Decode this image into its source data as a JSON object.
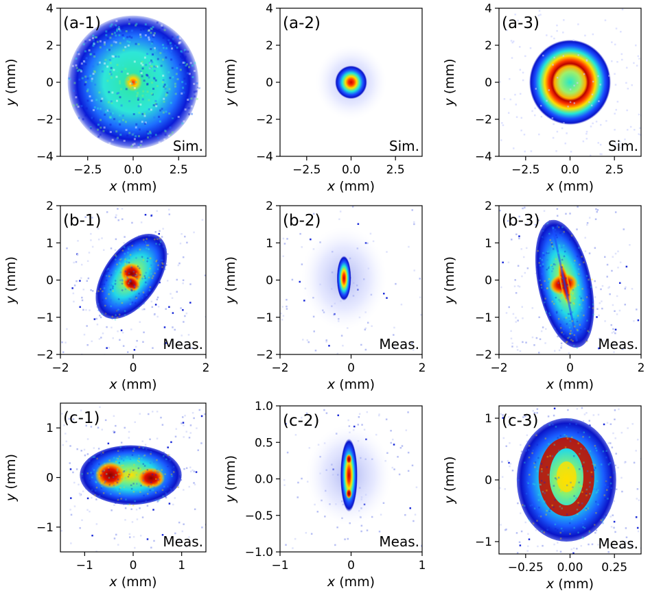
{
  "chart_data": [
    {
      "type": "heatmap",
      "id": "a1",
      "label": "(a-1)",
      "corner": "Sim.",
      "xlabel_var": "x",
      "ylabel_var": "y",
      "unit": "(mm)",
      "xlim": [
        -4,
        4
      ],
      "ylim": [
        -4,
        4
      ],
      "xticks": [
        "−2.5",
        "0.0",
        "2.5"
      ],
      "xtick_values": [
        -2.5,
        0,
        2.5
      ],
      "yticks": [
        "4",
        "2",
        "0",
        "−2",
        "−4"
      ],
      "ytick_values": [
        4,
        2,
        0,
        -2,
        -4
      ],
      "beam": {
        "shape": "disk",
        "cx": 0,
        "cy": 0,
        "rx": 3.6,
        "ry": 3.6,
        "rot": 0,
        "peak": "center"
      }
    },
    {
      "type": "heatmap",
      "id": "a2",
      "label": "(a-2)",
      "corner": "Sim.",
      "xlabel_var": "x",
      "ylabel_var": "y",
      "unit": "(mm)",
      "xlim": [
        -4,
        4
      ],
      "ylim": [
        -4,
        4
      ],
      "xticks": [
        "−2.5",
        "0.0",
        "2.5"
      ],
      "xtick_values": [
        -2.5,
        0,
        2.5
      ],
      "yticks": [
        "4",
        "2",
        "0",
        "−2",
        "−4"
      ],
      "ytick_values": [
        4,
        2,
        0,
        -2,
        -4
      ],
      "beam": {
        "shape": "spot",
        "cx": 0,
        "cy": 0,
        "rx": 0.9,
        "ry": 0.9,
        "halo": 2.0,
        "rot": 0,
        "peak": "center"
      }
    },
    {
      "type": "heatmap",
      "id": "a3",
      "label": "(a-3)",
      "corner": "Sim.",
      "xlabel_var": "x",
      "ylabel_var": "y",
      "unit": "(mm)",
      "xlim": [
        -4,
        4
      ],
      "ylim": [
        -4,
        4
      ],
      "xticks": [
        "−2.5",
        "0.0",
        "2.5"
      ],
      "xtick_values": [
        -2.5,
        0,
        2.5
      ],
      "yticks": [
        "4",
        "2",
        "0",
        "−2",
        "−4"
      ],
      "ytick_values": [
        4,
        2,
        0,
        -2,
        -4
      ],
      "beam": {
        "shape": "ring",
        "cx": 0,
        "cy": 0,
        "rx": 2.3,
        "ry": 2.3,
        "ring_r": 1.0,
        "rot": 0,
        "peak": "ring"
      }
    },
    {
      "type": "heatmap",
      "id": "b1",
      "label": "(b-1)",
      "corner": "Meas.",
      "xlabel_var": "x",
      "ylabel_var": "y",
      "unit": "(mm)",
      "xlim": [
        -2,
        2
      ],
      "ylim": [
        -2,
        2
      ],
      "xticks": [
        "−2",
        "0",
        "2"
      ],
      "xtick_values": [
        -2,
        0,
        2
      ],
      "yticks": [
        "2",
        "1",
        "0",
        "−1",
        "−2"
      ],
      "ytick_values": [
        2,
        1,
        0,
        -1,
        -2
      ],
      "beam": {
        "shape": "ellipse",
        "cx": -0.05,
        "cy": 0.1,
        "rx": 0.75,
        "ry": 1.3,
        "rot": -35,
        "peak": "lobes"
      }
    },
    {
      "type": "heatmap",
      "id": "b2",
      "label": "(b-2)",
      "corner": "Meas.",
      "xlabel_var": "x",
      "ylabel_var": "y",
      "unit": "(mm)",
      "xlim": [
        -2,
        2
      ],
      "ylim": [
        -2,
        2
      ],
      "xticks": [
        "−2",
        "0",
        "2"
      ],
      "xtick_values": [
        -2,
        0,
        2
      ],
      "yticks": [
        "2",
        "1",
        "0",
        "−1",
        "−2"
      ],
      "ytick_values": [
        2,
        1,
        0,
        -1,
        -2
      ],
      "beam": {
        "shape": "spot",
        "cx": -0.2,
        "cy": 0.05,
        "rx": 0.2,
        "ry": 0.6,
        "halo": 1.2,
        "rot": 0,
        "peak": "center"
      }
    },
    {
      "type": "heatmap",
      "id": "b3",
      "label": "(b-3)",
      "corner": "Meas.",
      "xlabel_var": "x",
      "ylabel_var": "y",
      "unit": "(mm)",
      "xlim": [
        -2,
        2
      ],
      "ylim": [
        -2,
        2
      ],
      "xticks": [
        "−2",
        "0",
        "2"
      ],
      "xtick_values": [
        -2,
        0,
        2
      ],
      "yticks": [
        "2",
        "1",
        "0",
        "−1",
        "−2"
      ],
      "ytick_values": [
        2,
        1,
        0,
        -1,
        -2
      ],
      "beam": {
        "shape": "ellipse",
        "cx": -0.15,
        "cy": -0.1,
        "rx": 0.75,
        "ry": 1.75,
        "rot": 12,
        "peak": "cross"
      }
    },
    {
      "type": "heatmap",
      "id": "c1",
      "label": "(c-1)",
      "corner": "Meas.",
      "xlabel_var": "x",
      "ylabel_var": "y",
      "unit": "(mm)",
      "xlim": [
        -1.5,
        1.5
      ],
      "ylim": [
        -1.5,
        1.5
      ],
      "xticks": [
        "−1",
        "0",
        "1"
      ],
      "xtick_values": [
        -1,
        0,
        1
      ],
      "yticks": [
        "1",
        "0",
        "−1"
      ],
      "ytick_values": [
        1,
        0,
        -1
      ],
      "beam": {
        "shape": "ellipse",
        "cx": -0.05,
        "cy": 0.05,
        "rx": 1.05,
        "ry": 0.6,
        "rot": 0,
        "peak": "twin"
      }
    },
    {
      "type": "heatmap",
      "id": "c2",
      "label": "(c-2)",
      "corner": "Meas.",
      "xlabel_var": "x",
      "ylabel_var": "y",
      "unit": "(mm)",
      "xlim": [
        -1,
        1
      ],
      "ylim": [
        -1,
        1
      ],
      "xticks": [
        "−1",
        "0",
        "1"
      ],
      "xtick_values": [
        -1,
        0,
        1
      ],
      "yticks": [
        "1.0",
        "0.5",
        "0.0",
        "−0.5",
        "−1.0"
      ],
      "ytick_values": [
        1,
        0.5,
        0,
        -0.5,
        -1
      ],
      "beam": {
        "shape": "spot",
        "cx": -0.03,
        "cy": 0.05,
        "rx": 0.12,
        "ry": 0.5,
        "halo": 0.6,
        "rot": 0,
        "peak": "vertical-pair"
      }
    },
    {
      "type": "heatmap",
      "id": "c3",
      "label": "(c-3)",
      "corner": "Meas.",
      "xlabel_var": "x",
      "ylabel_var": "y",
      "unit": "(mm)",
      "xlim": [
        -0.4,
        0.4
      ],
      "ylim": [
        -1.2,
        1.2
      ],
      "xticks": [
        "−0.25",
        "0.00",
        "0.25"
      ],
      "xtick_values": [
        -0.25,
        0,
        0.25
      ],
      "yticks": [
        "1",
        "0",
        "−1"
      ],
      "ytick_values": [
        1,
        0,
        -1
      ],
      "beam": {
        "shape": "ellipse",
        "cx": -0.02,
        "cy": 0.0,
        "rx": 0.28,
        "ry": 1.0,
        "rot": 0,
        "peak": "loop"
      }
    }
  ]
}
